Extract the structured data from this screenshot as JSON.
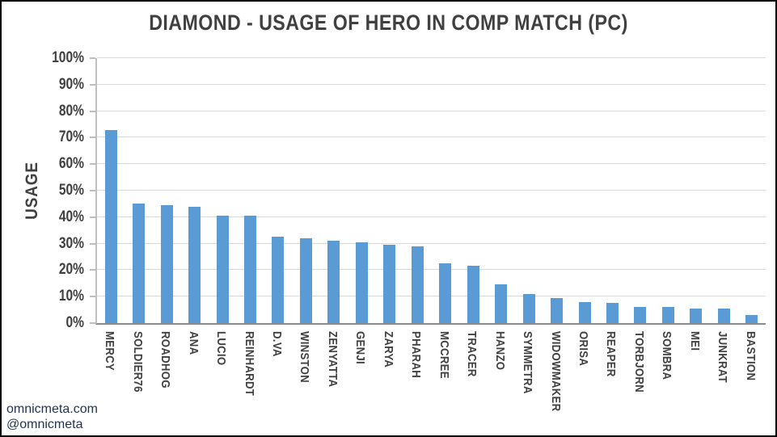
{
  "title": "DIAMOND - USAGE OF HERO IN COMP MATCH (PC)",
  "watermark": {
    "line1": "omnicmeta.com",
    "line2": "@omnicmeta"
  },
  "colors": {
    "bar": "#5B9BD5",
    "text": "#404040",
    "grid": "#D9D9D9",
    "axis": "#BFBFBF",
    "watermark": "#1F3252"
  },
  "chart_data": {
    "type": "bar",
    "title": "DIAMOND - USAGE OF HERO IN COMP MATCH (PC)",
    "xlabel": "",
    "ylabel": "USAGE",
    "ylim": [
      0,
      100
    ],
    "ytick_step": 10,
    "ytick_labels": [
      "0%",
      "10%",
      "20%",
      "30%",
      "40%",
      "50%",
      "60%",
      "70%",
      "80%",
      "90%",
      "100%"
    ],
    "grid": true,
    "legend": "none",
    "categories": [
      "MERCY",
      "SOLDIER76",
      "ROADHOG",
      "ANA",
      "LUCIO",
      "REINHARDT",
      "D.VA",
      "WINSTON",
      "ZENYATTA",
      "GENJI",
      "ZARYA",
      "PHARAH",
      "MCCREE",
      "TRACER",
      "HANZO",
      "SYMMETRA",
      "WIDOWMAKER",
      "ORISA",
      "REAPER",
      "TORBJORN",
      "SOMBRA",
      "MEI",
      "JUNKRAT",
      "BASTION"
    ],
    "values": [
      73,
      45,
      44.5,
      44,
      40.5,
      40.5,
      32.5,
      32,
      31,
      30.5,
      29.5,
      29,
      22.5,
      21.5,
      14.5,
      11,
      9.5,
      8,
      7.5,
      6,
      6,
      5.5,
      5.5,
      3
    ]
  }
}
